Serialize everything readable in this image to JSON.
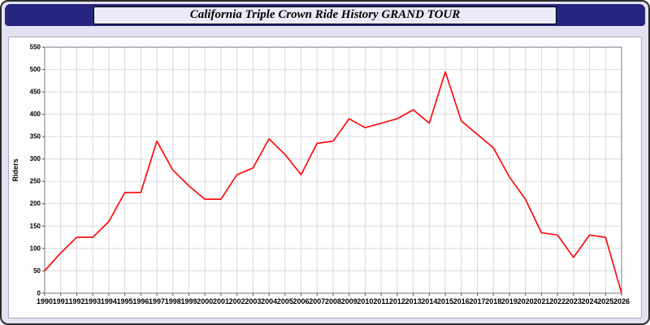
{
  "header": {
    "title": "California Triple Crown Ride History GRAND TOUR"
  },
  "chart_data": {
    "type": "line",
    "title": "California Triple Crown Ride History GRAND TOUR",
    "xlabel": "",
    "ylabel": "Riders",
    "ylim": [
      0,
      550
    ],
    "ytick": 50,
    "grid": true,
    "legend_position": "none",
    "x": [
      1990,
      1991,
      1992,
      1993,
      1994,
      1995,
      1996,
      1997,
      1998,
      1999,
      2000,
      2001,
      2002,
      2003,
      2004,
      2005,
      2006,
      2007,
      2008,
      2009,
      2010,
      2011,
      2012,
      2013,
      2014,
      2015,
      2016,
      2017,
      2018,
      2019,
      2020,
      2021,
      2022,
      2023,
      2024,
      2025,
      2026
    ],
    "series": [
      {
        "name": "Riders",
        "color": "#ff0000",
        "values": [
          50,
          90,
          125,
          125,
          160,
          225,
          225,
          340,
          275,
          240,
          210,
          210,
          265,
          280,
          345,
          310,
          265,
          335,
          340,
          390,
          370,
          380,
          390,
          410,
          380,
          495,
          385,
          355,
          325,
          260,
          210,
          135,
          130,
          80,
          130,
          125,
          0
        ]
      }
    ]
  },
  "colors": {
    "page_bg": "#e2e2f2",
    "header_bg": "#26267e",
    "title_box_bg": "#eaeaf8",
    "plot_bg": "#ffffff",
    "grid": "#d9d9e0",
    "plot_border": "#7a7a8a",
    "tick": "#444444",
    "line": "#ff0000",
    "text": "#000000"
  }
}
